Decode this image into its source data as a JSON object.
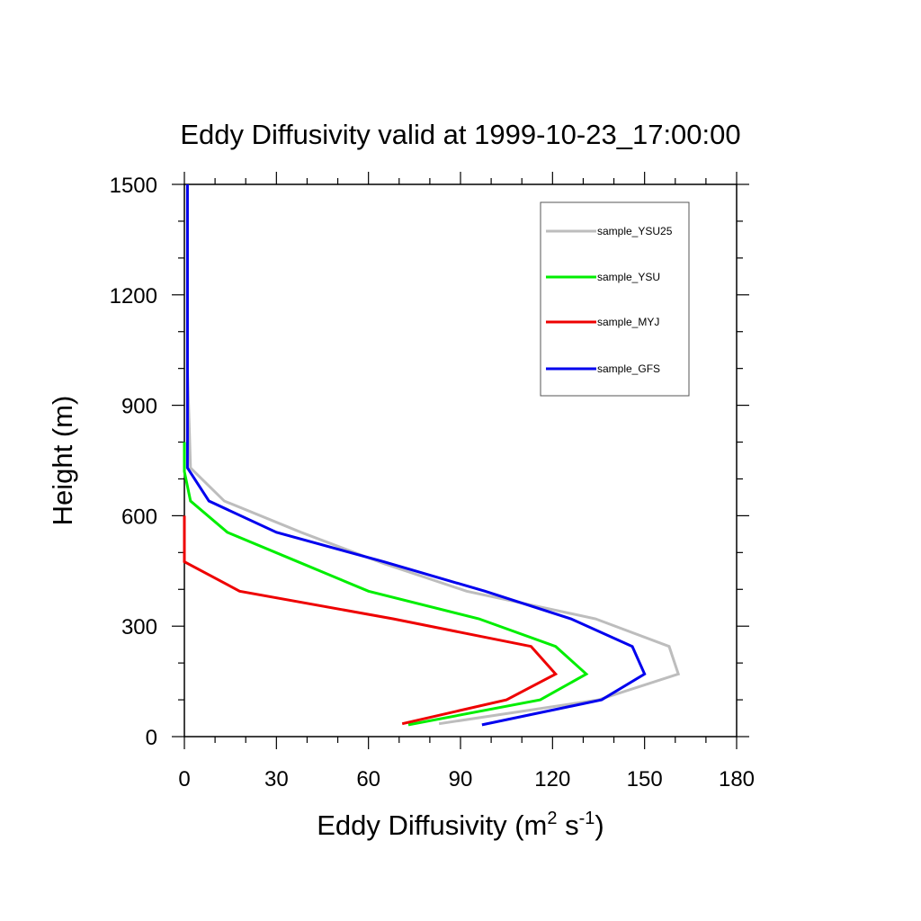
{
  "chart_data": {
    "type": "line",
    "title": "Eddy Diffusivity valid at 1999-10-23_17:00:00",
    "xlabel": "Eddy Diffusivity (m² s⁻¹)",
    "xlabel_parts": {
      "main": "Eddy Diffusivity (m",
      "sup1": "2",
      "mid": " s",
      "sup2": "-1",
      "end": ")"
    },
    "ylabel": "Height (m)",
    "xlim": [
      0,
      180
    ],
    "ylim": [
      0,
      1500
    ],
    "xticks": [
      0,
      30,
      60,
      90,
      120,
      150,
      180
    ],
    "yticks": [
      0,
      300,
      600,
      900,
      1200,
      1500
    ],
    "grid": false,
    "legend_position": "top-right",
    "series": [
      {
        "name": "sample_YSU25",
        "color": "#bdbdbd",
        "points": [
          [
            83,
            35
          ],
          [
            135,
            100
          ],
          [
            161,
            170
          ],
          [
            158,
            245
          ],
          [
            134,
            320
          ],
          [
            92,
            395
          ],
          [
            65,
            470
          ],
          [
            38,
            555
          ],
          [
            13,
            640
          ],
          [
            2,
            730
          ],
          [
            1,
            1000
          ],
          [
            1,
            1500
          ]
        ]
      },
      {
        "name": "sample_YSU",
        "color": "#00ee00",
        "points": [
          [
            73,
            32
          ],
          [
            116,
            100
          ],
          [
            131,
            170
          ],
          [
            121,
            245
          ],
          [
            96,
            320
          ],
          [
            60,
            395
          ],
          [
            37,
            475
          ],
          [
            14,
            555
          ],
          [
            2,
            640
          ],
          [
            0,
            720
          ],
          [
            0,
            800
          ]
        ]
      },
      {
        "name": "sample_MYJ",
        "color": "#ee0000",
        "points": [
          [
            71,
            35
          ],
          [
            105,
            100
          ],
          [
            121,
            170
          ],
          [
            113,
            245
          ],
          [
            68,
            320
          ],
          [
            18,
            395
          ],
          [
            0,
            475
          ],
          [
            0,
            600
          ]
        ]
      },
      {
        "name": "sample_GFS",
        "color": "#0000ee",
        "points": [
          [
            97,
            32
          ],
          [
            136,
            100
          ],
          [
            150,
            170
          ],
          [
            146,
            245
          ],
          [
            126,
            320
          ],
          [
            98,
            395
          ],
          [
            65,
            475
          ],
          [
            30,
            555
          ],
          [
            8,
            640
          ],
          [
            1,
            730
          ],
          [
            1,
            1000
          ],
          [
            1,
            1500
          ]
        ]
      }
    ]
  }
}
